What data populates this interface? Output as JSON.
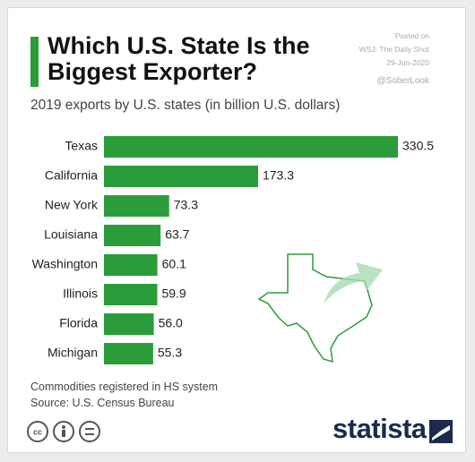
{
  "chart_data": {
    "type": "bar",
    "orientation": "horizontal",
    "title": "Which U.S. State Is the Biggest Exporter?",
    "subtitle": "2019 exports by U.S. states (in billion U.S. dollars)",
    "categories": [
      "Texas",
      "California",
      "New York",
      "Louisiana",
      "Washington",
      "Illinois",
      "Florida",
      "Michigan"
    ],
    "values": [
      330.5,
      173.3,
      73.3,
      63.7,
      60.1,
      59.9,
      56.0,
      55.3
    ],
    "value_labels": [
      "330.5",
      "173.3",
      "73.3",
      "63.7",
      "60.1",
      "59.9",
      "56.0",
      "55.3"
    ],
    "color": "#2a9d3a",
    "posted": [
      "Posted on",
      "WSJ: The Daily Shot",
      "29-Jun-2020"
    ],
    "credit": "@SoberLook",
    "notes": [
      "Commodities registered in HS system",
      "Source: U.S. Census Bureau"
    ],
    "brand": "statista"
  }
}
